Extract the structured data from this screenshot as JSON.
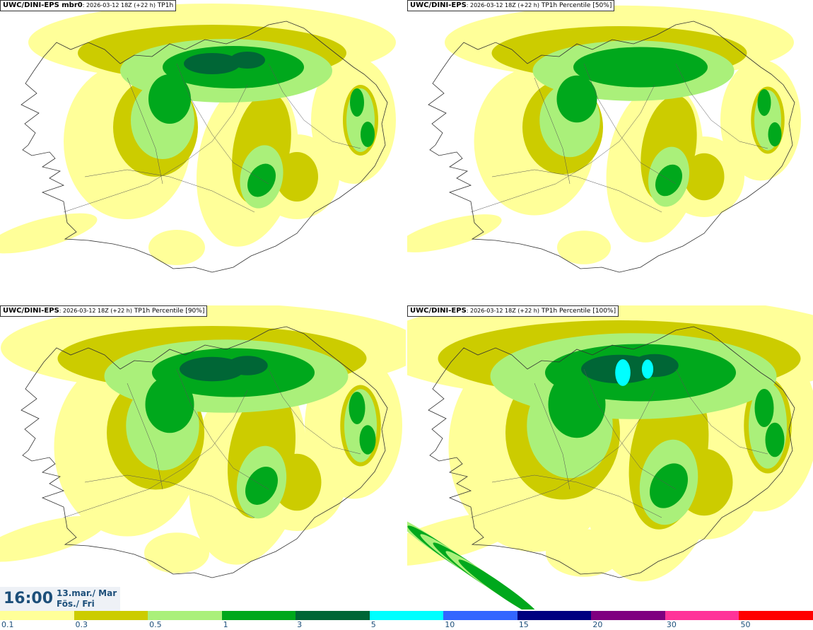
{
  "panels": [
    {
      "model": "UWC/DINI-EPS",
      "suffix": " mbr0",
      "run": ": 2026-03-12 18Z (+22 h)",
      "field": " TP1h",
      "intensity": 1
    },
    {
      "model": "UWC/DINI-EPS",
      "suffix": "",
      "run": ": 2026-03-12 18Z (+22 h)",
      "field": " TP1h Percentile [50%]",
      "intensity": 2
    },
    {
      "model": "UWC/DINI-EPS",
      "suffix": "",
      "run": ": 2026-03-12 18Z (+22 h)",
      "field": " TP1h Percentile [90%]",
      "intensity": 3
    },
    {
      "model": "UWC/DINI-EPS",
      "suffix": "",
      "run": ": 2026-03-12 18Z (+22 h)",
      "field": " TP1h Percentile [100%]",
      "intensity": 4
    }
  ],
  "valid_time": {
    "time": "16:00",
    "date_line1": "13.mar./ Mar",
    "date_line2": "Fös./ Fri"
  },
  "legend": {
    "colors": [
      "#ffff99",
      "#cccc00",
      "#aaf07a",
      "#00a81c",
      "#006636",
      "#00ffff",
      "#3366ff",
      "#000080",
      "#7f0080",
      "#ff3399",
      "#ff0000"
    ],
    "labels": [
      "0.1",
      "0.3",
      "0.5",
      "1",
      "3",
      "5",
      "10",
      "15",
      "20",
      "30",
      "50"
    ]
  }
}
